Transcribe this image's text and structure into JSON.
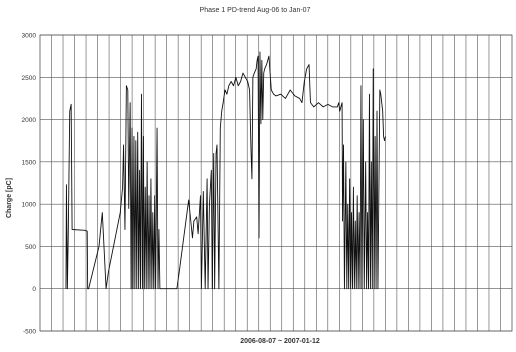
{
  "chart_data": {
    "type": "line",
    "title": "Phase 1 PD-trend Aug-06 to Jan-07",
    "xlabel": "2006-08-07 ~ 2007-01-12",
    "ylabel": "Charge [pC]",
    "ylim": [
      -500,
      3000
    ],
    "yticks": [
      -500,
      0,
      500,
      1000,
      1500,
      2000,
      2500,
      3000
    ],
    "x_grid_divisions": 41,
    "grid": true,
    "legend": "none",
    "x_range": [
      0,
      100
    ],
    "series": [
      {
        "values": [
          [
            5.5,
            0
          ],
          [
            5.6,
            1230
          ],
          [
            5.8,
            0
          ],
          [
            6.0,
            700
          ],
          [
            6.3,
            2100
          ],
          [
            6.6,
            2180
          ],
          [
            6.8,
            700
          ],
          [
            9.5,
            690
          ],
          [
            10,
            680
          ],
          [
            10.1,
            0
          ],
          [
            10.3,
            0
          ],
          [
            12.5,
            500
          ],
          [
            13.2,
            900
          ],
          [
            14,
            0
          ],
          [
            14.5,
            200
          ],
          [
            17,
            900
          ],
          [
            17.5,
            1200
          ],
          [
            17.7,
            1700
          ],
          [
            18.0,
            700
          ],
          [
            18.3,
            2400
          ],
          [
            18.6,
            2350
          ],
          [
            18.8,
            950
          ],
          [
            19.1,
            2200
          ],
          [
            19.3,
            0
          ],
          [
            19.5,
            1900
          ],
          [
            19.7,
            0
          ],
          [
            19.9,
            1800
          ],
          [
            20.1,
            0
          ],
          [
            20.3,
            1750
          ],
          [
            20.5,
            0
          ],
          [
            20.7,
            1850
          ],
          [
            20.9,
            0
          ],
          [
            21.1,
            1400
          ],
          [
            21.3,
            0
          ],
          [
            21.5,
            2300
          ],
          [
            21.7,
            0
          ],
          [
            21.9,
            1800
          ],
          [
            22.1,
            0
          ],
          [
            22.3,
            1200
          ],
          [
            22.5,
            0
          ],
          [
            22.7,
            1500
          ],
          [
            22.9,
            0
          ],
          [
            23.1,
            1100
          ],
          [
            23.3,
            0
          ],
          [
            23.5,
            1300
          ],
          [
            23.7,
            0
          ],
          [
            23.9,
            900
          ],
          [
            24.1,
            0
          ],
          [
            24.3,
            1100
          ],
          [
            24.5,
            0
          ],
          [
            24.8,
            1900
          ],
          [
            25.0,
            0
          ],
          [
            25.2,
            700
          ],
          [
            25.4,
            0
          ],
          [
            26.5,
            0
          ],
          [
            28.5,
            0
          ],
          [
            29.0,
            0
          ],
          [
            29.5,
            200
          ],
          [
            31.5,
            1050
          ],
          [
            32.3,
            600
          ],
          [
            32.6,
            800
          ],
          [
            33.2,
            850
          ],
          [
            33.5,
            650
          ],
          [
            34.0,
            1100
          ],
          [
            34.2,
            0
          ],
          [
            34.6,
            1150
          ],
          [
            35.0,
            0
          ],
          [
            35.4,
            1300
          ],
          [
            35.6,
            0
          ],
          [
            35.9,
            1000
          ],
          [
            36.3,
            1400
          ],
          [
            36.5,
            0
          ],
          [
            36.8,
            1600
          ],
          [
            37.0,
            0
          ],
          [
            37.3,
            1600
          ],
          [
            37.5,
            1700
          ],
          [
            37.9,
            0
          ],
          [
            38.2,
            1900
          ],
          [
            38.5,
            2100
          ],
          [
            38.8,
            2200
          ],
          [
            39.2,
            2350
          ],
          [
            39.6,
            2300
          ],
          [
            40.0,
            2400
          ],
          [
            40.5,
            2450
          ],
          [
            41.0,
            2400
          ],
          [
            41.5,
            2500
          ],
          [
            42.0,
            2400
          ],
          [
            42.5,
            2450
          ],
          [
            43.0,
            2550
          ],
          [
            43.5,
            2500
          ],
          [
            44.0,
            2450
          ],
          [
            44.4,
            2350
          ],
          [
            44.7,
            1650
          ],
          [
            44.9,
            1300
          ],
          [
            45.1,
            2500
          ],
          [
            45.4,
            2550
          ],
          [
            45.8,
            2600
          ],
          [
            46.0,
            2700
          ],
          [
            46.2,
            2750
          ],
          [
            46.4,
            600
          ],
          [
            46.6,
            2800
          ],
          [
            46.8,
            1950
          ],
          [
            47.0,
            2700
          ],
          [
            47.2,
            2000
          ],
          [
            47.4,
            2550
          ],
          [
            47.6,
            2600
          ],
          [
            48.0,
            2650
          ],
          [
            48.5,
            2750
          ],
          [
            49.0,
            2350
          ],
          [
            49.5,
            2300
          ],
          [
            50.0,
            2280
          ],
          [
            51.0,
            2300
          ],
          [
            52.0,
            2250
          ],
          [
            53.0,
            2350
          ],
          [
            54.0,
            2280
          ],
          [
            55.0,
            2250
          ],
          [
            55.5,
            2200
          ],
          [
            56.0,
            2450
          ],
          [
            56.5,
            2600
          ],
          [
            57.0,
            2650
          ],
          [
            57.3,
            2200
          ],
          [
            58.0,
            2150
          ],
          [
            59.0,
            2200
          ],
          [
            60.0,
            2150
          ],
          [
            61.0,
            2180
          ],
          [
            62.0,
            2150
          ],
          [
            63.0,
            2150
          ],
          [
            63.3,
            2200
          ],
          [
            63.5,
            2100
          ],
          [
            64.0,
            2200
          ],
          [
            64.1,
            800
          ],
          [
            64.3,
            1700
          ],
          [
            64.5,
            0
          ],
          [
            64.8,
            1500
          ],
          [
            65.0,
            0
          ],
          [
            65.2,
            1000
          ],
          [
            65.4,
            0
          ],
          [
            65.6,
            1300
          ],
          [
            65.8,
            0
          ],
          [
            66.0,
            900
          ],
          [
            66.2,
            0
          ],
          [
            66.4,
            1200
          ],
          [
            66.6,
            0
          ],
          [
            66.8,
            800
          ],
          [
            67.0,
            0
          ],
          [
            67.2,
            1100
          ],
          [
            67.4,
            0
          ],
          [
            67.6,
            900
          ],
          [
            67.8,
            0
          ],
          [
            68.0,
            2400
          ],
          [
            68.2,
            0
          ],
          [
            68.5,
            2000
          ],
          [
            68.7,
            0
          ],
          [
            69.0,
            1500
          ],
          [
            69.2,
            0
          ],
          [
            69.4,
            900
          ],
          [
            69.6,
            0
          ],
          [
            69.8,
            2300
          ],
          [
            70.0,
            0
          ],
          [
            70.2,
            1500
          ],
          [
            70.4,
            0
          ],
          [
            70.6,
            2600
          ],
          [
            70.8,
            0
          ],
          [
            71.0,
            1800
          ],
          [
            71.2,
            0
          ],
          [
            71.4,
            2100
          ],
          [
            71.6,
            0
          ],
          [
            72.0,
            2350
          ],
          [
            72.2,
            2300
          ],
          [
            72.4,
            2200
          ],
          [
            72.6,
            2100
          ],
          [
            72.8,
            1800
          ],
          [
            73.0,
            1750
          ],
          [
            73.2,
            1800
          ]
        ]
      }
    ]
  }
}
